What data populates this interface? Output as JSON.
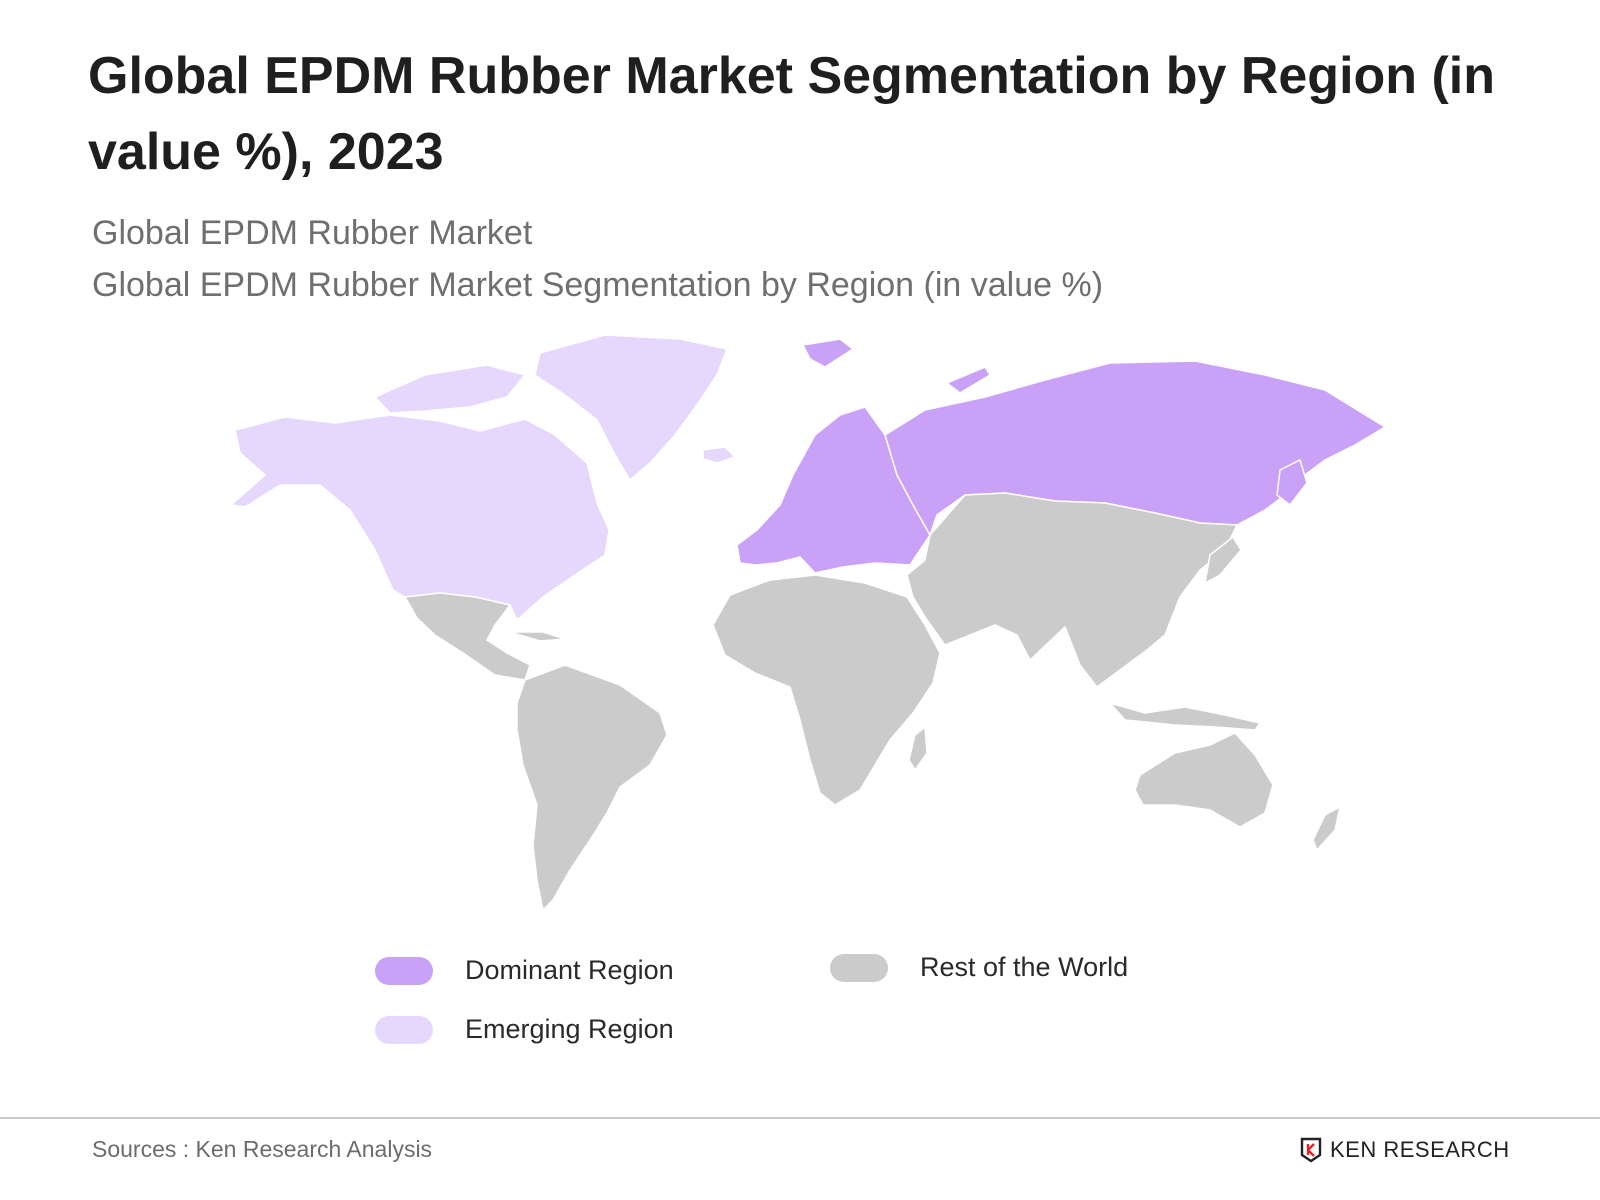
{
  "title": "Global EPDM Rubber Market Segmentation by Region (in value %), 2023",
  "subtitle_1": "Global EPDM Rubber Market",
  "subtitle_2": "Global EPDM Rubber Market Segmentation by Region (in value %)",
  "map_regions": [
    {
      "region": "North America & Greenland",
      "category": "Emerging Region"
    },
    {
      "region": "Europe & Russia",
      "category": "Dominant Region"
    },
    {
      "region": "Latin America",
      "category": "Rest of the World"
    },
    {
      "region": "Africa",
      "category": "Rest of the World"
    },
    {
      "region": "Middle East & Asia",
      "category": "Rest of the World"
    },
    {
      "region": "Oceania",
      "category": "Rest of the World"
    }
  ],
  "colors": {
    "Dominant Region": "#c9a2f7",
    "Emerging Region": "#e6d7fc",
    "Rest of the World": "#cbcbcb"
  },
  "legend": [
    {
      "label": "Dominant Region"
    },
    {
      "label": "Rest of the World"
    },
    {
      "label": "Emerging Region"
    }
  ],
  "source": "Sources : Ken Research Analysis",
  "brand": "KEN RESEARCH",
  "brand_icon": "ken-research-logo-icon"
}
